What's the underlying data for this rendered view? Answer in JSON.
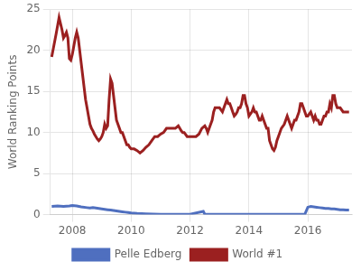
{
  "chart_data": {
    "type": "line",
    "ylabel": "World Ranking Points",
    "xlim": [
      2007.25,
      2017.5
    ],
    "xticks": [
      2008,
      2010,
      2012,
      2014,
      2016
    ],
    "ylim": [
      0,
      25
    ],
    "yticks": [
      0,
      5,
      10,
      15,
      20,
      25
    ],
    "grid": true,
    "legend": "bottom",
    "series": [
      {
        "name": "Pelle Edberg",
        "color": "#4f6fbf",
        "x": [
          2007.3,
          2007.5,
          2007.7,
          2007.9,
          2008.0,
          2008.15,
          2008.3,
          2008.5,
          2008.6,
          2008.7,
          2008.8,
          2008.9,
          2009.0,
          2009.1,
          2009.2,
          2009.3,
          2009.4,
          2009.5,
          2009.6,
          2009.7,
          2009.8,
          2009.9,
          2010.0,
          2010.2,
          2010.5,
          2011.0,
          2011.5,
          2012.0,
          2012.45,
          2012.5,
          2013.0,
          2013.5,
          2014.0,
          2014.5,
          2015.0,
          2015.5,
          2015.9,
          2016.0,
          2016.1,
          2016.2,
          2016.3,
          2016.4,
          2016.5,
          2016.6,
          2016.7,
          2016.8,
          2016.9,
          2017.0,
          2017.1,
          2017.2,
          2017.3,
          2017.4
        ],
        "values": [
          1.0,
          1.05,
          1.0,
          1.05,
          1.1,
          1.05,
          0.95,
          0.85,
          0.8,
          0.85,
          0.8,
          0.75,
          0.7,
          0.65,
          0.6,
          0.55,
          0.5,
          0.45,
          0.4,
          0.35,
          0.3,
          0.25,
          0.2,
          0.15,
          0.1,
          0.05,
          0.05,
          0.05,
          0.4,
          0.05,
          0.05,
          0.05,
          0.05,
          0.05,
          0.05,
          0.05,
          0.05,
          0.9,
          1.0,
          0.95,
          0.9,
          0.85,
          0.8,
          0.75,
          0.75,
          0.7,
          0.7,
          0.65,
          0.6,
          0.6,
          0.55,
          0.55
        ]
      },
      {
        "name": "World #1",
        "color": "#9b2020",
        "x": [
          2007.3,
          2007.45,
          2007.55,
          2007.65,
          2007.7,
          2007.75,
          2007.8,
          2007.85,
          2007.9,
          2007.95,
          2008.0,
          2008.05,
          2008.1,
          2008.15,
          2008.2,
          2008.25,
          2008.3,
          2008.35,
          2008.4,
          2008.45,
          2008.5,
          2008.55,
          2008.6,
          2008.65,
          2008.7,
          2008.75,
          2008.8,
          2008.85,
          2008.9,
          2008.95,
          2009.0,
          2009.05,
          2009.1,
          2009.15,
          2009.2,
          2009.25,
          2009.3,
          2009.35,
          2009.4,
          2009.45,
          2009.5,
          2009.55,
          2009.6,
          2009.65,
          2009.7,
          2009.75,
          2009.8,
          2009.85,
          2009.9,
          2009.95,
          2010.0,
          2010.1,
          2010.2,
          2010.3,
          2010.4,
          2010.5,
          2010.6,
          2010.7,
          2010.8,
          2010.9,
          2011.0,
          2011.1,
          2011.2,
          2011.3,
          2011.4,
          2011.5,
          2011.6,
          2011.65,
          2011.7,
          2011.75,
          2011.8,
          2011.9,
          2012.0,
          2012.1,
          2012.2,
          2012.3,
          2012.4,
          2012.5,
          2012.55,
          2012.6,
          2012.65,
          2012.7,
          2012.75,
          2012.8,
          2012.85,
          2012.9,
          2013.0,
          2013.1,
          2013.15,
          2013.2,
          2013.25,
          2013.3,
          2013.35,
          2013.4,
          2013.45,
          2013.5,
          2013.55,
          2013.6,
          2013.65,
          2013.7,
          2013.75,
          2013.8,
          2013.85,
          2013.9,
          2013.95,
          2014.0,
          2014.1,
          2014.15,
          2014.2,
          2014.25,
          2014.3,
          2014.35,
          2014.4,
          2014.45,
          2014.5,
          2014.55,
          2014.6,
          2014.65,
          2014.7,
          2014.75,
          2014.8,
          2014.85,
          2014.9,
          2014.95,
          2015.0,
          2015.1,
          2015.2,
          2015.25,
          2015.3,
          2015.35,
          2015.4,
          2015.45,
          2015.5,
          2015.55,
          2015.6,
          2015.65,
          2015.7,
          2015.75,
          2015.8,
          2015.85,
          2015.9,
          2015.95,
          2016.0,
          2016.1,
          2016.15,
          2016.2,
          2016.25,
          2016.3,
          2016.35,
          2016.4,
          2016.45,
          2016.5,
          2016.55,
          2016.6,
          2016.65,
          2016.7,
          2016.75,
          2016.8,
          2016.85,
          2016.9,
          2016.95,
          2017.0,
          2017.1,
          2017.2,
          2017.3,
          2017.4
        ],
        "values": [
          19.2,
          22.0,
          24.0,
          22.5,
          21.5,
          21.8,
          22.2,
          21.5,
          19.0,
          18.8,
          19.5,
          20.5,
          21.5,
          22.2,
          21.5,
          20.0,
          18.5,
          17.0,
          15.5,
          14.0,
          13.0,
          12.0,
          11.0,
          10.5,
          10.2,
          9.8,
          9.5,
          9.2,
          9.0,
          9.2,
          9.5,
          10.0,
          11.0,
          10.5,
          10.8,
          14.0,
          16.5,
          16.0,
          14.5,
          13.0,
          11.5,
          11.0,
          10.5,
          10.0,
          10.0,
          9.5,
          9.0,
          8.5,
          8.5,
          8.2,
          8.0,
          8.0,
          7.8,
          7.5,
          7.8,
          8.2,
          8.5,
          9.0,
          9.5,
          9.5,
          9.8,
          10.0,
          10.5,
          10.5,
          10.5,
          10.5,
          10.8,
          10.5,
          10.2,
          10.0,
          10.0,
          9.5,
          9.5,
          9.5,
          9.5,
          9.8,
          10.5,
          10.8,
          10.5,
          10.0,
          10.5,
          11.0,
          11.5,
          12.5,
          13.0,
          13.0,
          13.0,
          12.5,
          13.0,
          13.5,
          14.0,
          13.5,
          13.5,
          13.0,
          12.5,
          12.0,
          12.2,
          12.5,
          13.0,
          13.0,
          13.5,
          14.5,
          14.5,
          13.5,
          13.0,
          12.0,
          12.5,
          13.0,
          12.5,
          12.5,
          12.0,
          11.5,
          11.5,
          12.0,
          11.5,
          11.0,
          10.5,
          10.5,
          9.0,
          8.5,
          8.0,
          7.8,
          8.2,
          9.0,
          9.5,
          10.5,
          11.0,
          11.5,
          12.0,
          11.5,
          11.0,
          10.5,
          11.0,
          11.5,
          11.5,
          12.0,
          12.5,
          13.5,
          13.5,
          13.0,
          12.5,
          12.0,
          12.0,
          12.5,
          12.0,
          11.5,
          12.0,
          11.5,
          11.5,
          11.0,
          11.0,
          11.5,
          12.0,
          12.0,
          12.5,
          12.5,
          13.5,
          13.0,
          14.5,
          14.5,
          13.5,
          13.0,
          13.0,
          12.5,
          12.5,
          12.5
        ]
      }
    ]
  }
}
